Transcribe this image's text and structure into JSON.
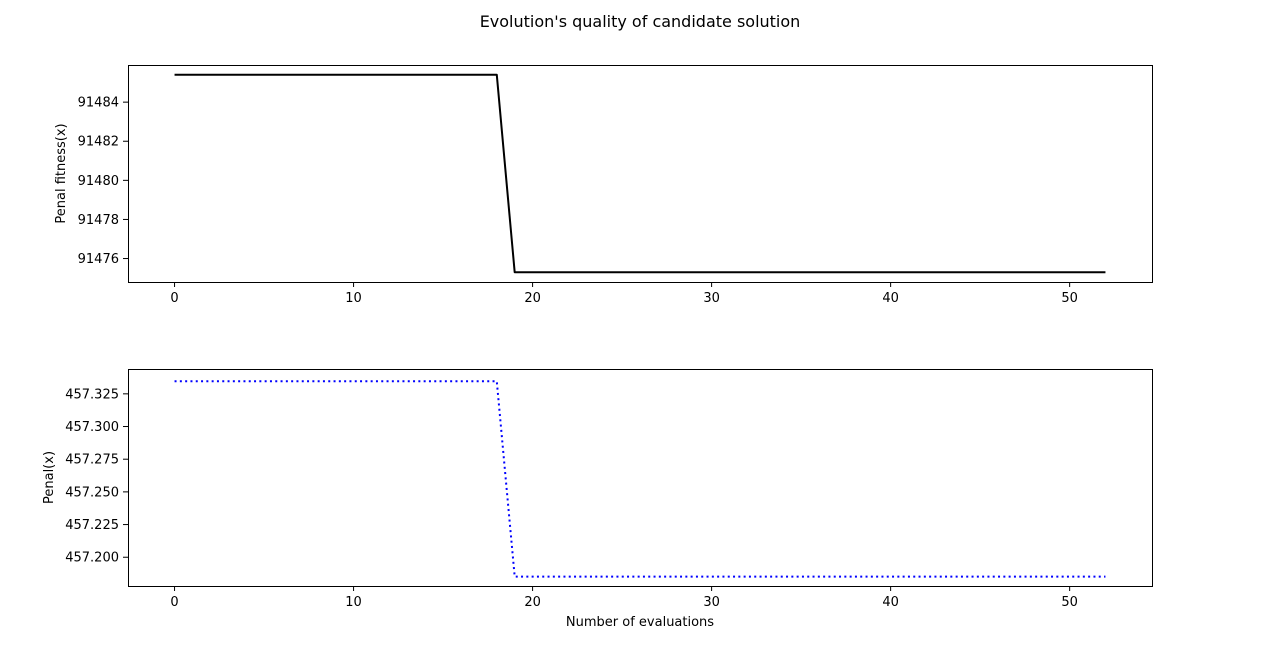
{
  "figure": {
    "title": "Evolution's quality of candidate solution"
  },
  "chart_data": [
    {
      "type": "line",
      "title": "",
      "xlabel": "",
      "ylabel": "Penal fitness(x)",
      "xlim": [
        -2.6,
        54.6
      ],
      "ylim": [
        91474.8,
        91485.9
      ],
      "xticks": [
        0,
        10,
        20,
        30,
        40,
        50
      ],
      "xtick_labels": [
        "0",
        "10",
        "20",
        "30",
        "40",
        "50"
      ],
      "yticks": [
        91476,
        91478,
        91480,
        91482,
        91484
      ],
      "ytick_labels": [
        "91476",
        "91478",
        "91480",
        "91482",
        "91484"
      ],
      "grid": false,
      "legend": "none",
      "series": [
        {
          "color": "#000000",
          "linestyle": "solid",
          "x": [
            0,
            18,
            19,
            52
          ],
          "y": [
            91485.4,
            91485.4,
            91475.3,
            91475.3
          ]
        }
      ]
    },
    {
      "type": "line",
      "title": "",
      "xlabel": "Number of evaluations",
      "ylabel": "Penal(x)",
      "xlim": [
        -2.6,
        54.6
      ],
      "ylim": [
        457.178,
        457.344
      ],
      "xticks": [
        0,
        10,
        20,
        30,
        40,
        50
      ],
      "xtick_labels": [
        "0",
        "10",
        "20",
        "30",
        "40",
        "50"
      ],
      "yticks": [
        457.2,
        457.225,
        457.25,
        457.275,
        457.3,
        457.325
      ],
      "ytick_labels": [
        "457.200",
        "457.225",
        "457.250",
        "457.275",
        "457.300",
        "457.325"
      ],
      "grid": false,
      "legend": "none",
      "series": [
        {
          "color": "#0000ff",
          "linestyle": "dotted",
          "x": [
            0,
            18,
            19,
            52
          ],
          "y": [
            457.3346,
            457.3346,
            457.1852,
            457.1852
          ]
        }
      ]
    }
  ]
}
